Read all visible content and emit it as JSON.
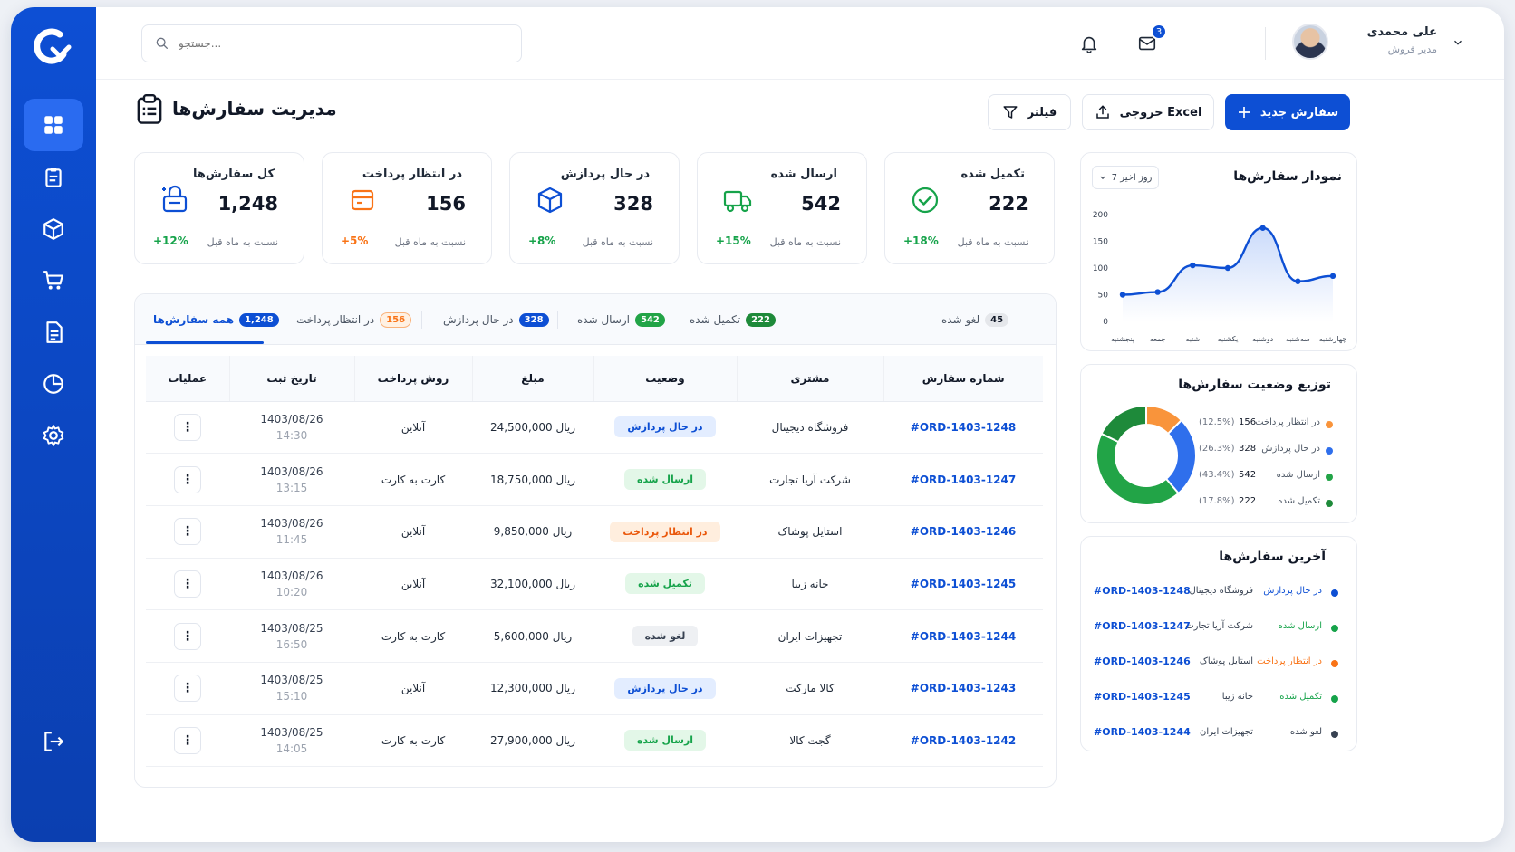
{
  "header": {
    "search_placeholder": "جستجو...",
    "mail_badge": "3",
    "user_name": "علی محمدی",
    "user_role": "مدیر فروش"
  },
  "page": {
    "title": "مدیریت سفارش‌ها",
    "btn_new": "سفارش جدید",
    "btn_export": "خروجی Excel",
    "btn_filter": "فیلتر"
  },
  "stats": [
    {
      "title": "کل سفارش‌ها",
      "value": "1,248",
      "compare": "نسبت به ماه قبل",
      "pct": "+12%",
      "color": "#16a34a",
      "icon": "orders-box-icon"
    },
    {
      "title": "در انتظار پرداخت",
      "value": "156",
      "compare": "نسبت به ماه قبل",
      "pct": "+5%",
      "color": "#f97316",
      "icon": "wallet-icon"
    },
    {
      "title": "در حال پردازش",
      "value": "328",
      "compare": "نسبت به ماه قبل",
      "pct": "+8%",
      "color": "#16a34a",
      "icon": "package-icon"
    },
    {
      "title": "ارسال شده",
      "value": "542",
      "compare": "نسبت به ماه قبل",
      "pct": "+15%",
      "color": "#16a34a",
      "icon": "truck-icon"
    },
    {
      "title": "تکمیل شده",
      "value": "222",
      "compare": "نسبت به ماه قبل",
      "pct": "+18%",
      "color": "#16a34a",
      "icon": "check-circle-icon"
    }
  ],
  "tabs": [
    {
      "label": "همه سفارش‌ها",
      "count": "1,248",
      "color": "#0d4fd4"
    },
    {
      "label": "در انتظار پرداخت",
      "count": "156",
      "color": "#f97316"
    },
    {
      "label": "در حال پردازش",
      "count": "328",
      "color": "#0d4fd4"
    },
    {
      "label": "ارسال شده",
      "count": "542",
      "color": "#16a34a"
    },
    {
      "label": "تکمیل شده",
      "count": "222",
      "color": "#16a34a"
    },
    {
      "label": "لغو شده",
      "count": "45",
      "color": "#e5e7eb"
    }
  ],
  "table": {
    "headers": [
      "شماره سفارش",
      "مشتری",
      "وضعیت",
      "مبلغ",
      "روش پرداخت",
      "تاریخ ثبت",
      "عملیات"
    ],
    "rows": [
      {
        "order": "#ORD-1403-1248",
        "customer": "فروشگاه دیجیتال",
        "status": "در حال پردازش",
        "status_type": "processing",
        "amount": "24,500,000 ریال",
        "payment": "آنلاین",
        "date": "1403/08/26",
        "time": "14:30"
      },
      {
        "order": "#ORD-1403-1247",
        "customer": "شرکت آریا تجارت",
        "status": "ارسال شده",
        "status_type": "shipped",
        "amount": "18,750,000 ریال",
        "payment": "کارت به کارت",
        "date": "1403/08/26",
        "time": "13:15"
      },
      {
        "order": "#ORD-1403-1246",
        "customer": "استایل پوشاک",
        "status": "در انتظار پرداخت",
        "status_type": "pending",
        "amount": "9,850,000 ریال",
        "payment": "آنلاین",
        "date": "1403/08/26",
        "time": "11:45"
      },
      {
        "order": "#ORD-1403-1245",
        "customer": "خانه زیبا",
        "status": "تکمیل شده",
        "status_type": "completed",
        "amount": "32,100,000 ریال",
        "payment": "آنلاین",
        "date": "1403/08/26",
        "time": "10:20"
      },
      {
        "order": "#ORD-1403-1244",
        "customer": "تجهیزات ایران",
        "status": "لغو شده",
        "status_type": "cancelled",
        "amount": "5,600,000 ریال",
        "payment": "کارت به کارت",
        "date": "1403/08/25",
        "time": "16:50"
      },
      {
        "order": "#ORD-1403-1243",
        "customer": "کالا مارکت",
        "status": "در حال پردازش",
        "status_type": "processing",
        "amount": "12,300,000 ریال",
        "payment": "آنلاین",
        "date": "1403/08/25",
        "time": "15:10"
      },
      {
        "order": "#ORD-1403-1242",
        "customer": "گجت کالا",
        "status": "ارسال شده",
        "status_type": "shipped",
        "amount": "27,900,000 ریال",
        "payment": "کارت به کارت",
        "date": "1403/08/25",
        "time": "14:05"
      }
    ],
    "action_glyph": "⋮"
  },
  "status_colors": {
    "processing": {
      "bg": "#e3edff",
      "fg": "#0d4fd4"
    },
    "shipped": {
      "bg": "#e3f7e8",
      "fg": "#16a34a"
    },
    "pending": {
      "bg": "#ffeede",
      "fg": "#ea580c"
    },
    "completed": {
      "bg": "#e3f7e8",
      "fg": "#16a34a"
    },
    "cancelled": {
      "bg": "#eef0f3",
      "fg": "#374151"
    }
  },
  "orders_chart": {
    "title": "نمودار سفارش‌ها",
    "range_label": "7 روز اخیر",
    "chart_data": {
      "type": "line",
      "categories": [
        "پنجشنبه",
        "جمعه",
        "شنبه",
        "یکشنبه",
        "دوشنبه",
        "سه‌شنبه",
        "چهارشنبه"
      ],
      "values": [
        50,
        55,
        105,
        100,
        175,
        75,
        85
      ],
      "yticks": [
        "200",
        "150",
        "100",
        "50",
        "0"
      ],
      "ylim": [
        0,
        200
      ],
      "color": "#0d4fd4"
    }
  },
  "distribution": {
    "title": "توزیع وضعیت سفارش‌ها",
    "chart_data": {
      "type": "pie",
      "labels": [
        "در انتظار پرداخت",
        "در حال پردازش",
        "ارسال شده",
        "تکمیل شده"
      ],
      "values": [
        156,
        328,
        542,
        222
      ],
      "pcts": [
        "(12.5%)",
        "(26.3%)",
        "(43.4%)",
        "(17.8%)"
      ],
      "colors": [
        "#f9943b",
        "#2f6fec",
        "#22a447",
        "#1e8a3a"
      ]
    }
  },
  "recent": {
    "title": "آخرین سفارش‌ها",
    "items": [
      {
        "status": "در حال پردازش",
        "customer": "فروشگاه دیجیتال",
        "order": "#ORD-1403-1248",
        "color": "#0d4fd4"
      },
      {
        "status": "ارسال شده",
        "customer": "شرکت آریا تجارت",
        "order": "#ORD-1403-1247",
        "color": "#16a34a"
      },
      {
        "status": "در انتظار پرداخت",
        "customer": "استایل پوشاک",
        "order": "#ORD-1403-1246",
        "color": "#f97316"
      },
      {
        "status": "تکمیل شده",
        "customer": "خانه زیبا",
        "order": "#ORD-1403-1245",
        "color": "#16a34a"
      },
      {
        "status": "لغو شده",
        "customer": "تجهیزات ایران",
        "order": "#ORD-1403-1244",
        "color": "#374151"
      }
    ]
  }
}
